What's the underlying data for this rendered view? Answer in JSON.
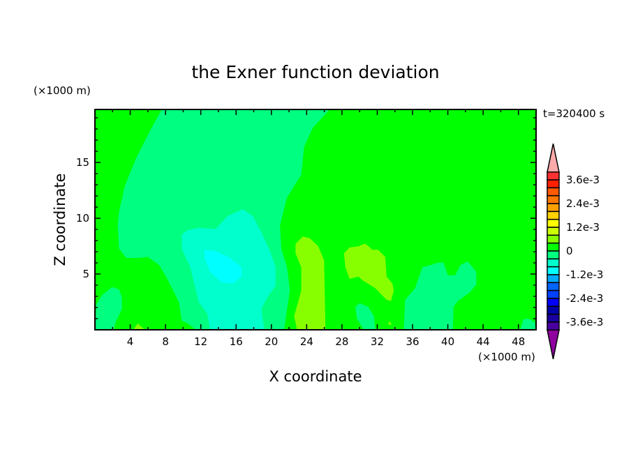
{
  "chart_data": {
    "type": "heatmap",
    "subtype": "filled-contour",
    "title": "the Exner function deviation",
    "xlabel": "X coordinate",
    "ylabel": "Z coordinate",
    "x_unit": "(×1000 m)",
    "y_unit": "(×1000 m)",
    "time_label": "t=320400 s",
    "xlim": [
      0,
      50
    ],
    "ylim": [
      0,
      19.75
    ],
    "x_ticks": [
      4,
      8,
      12,
      16,
      20,
      24,
      28,
      32,
      36,
      40,
      44,
      48
    ],
    "y_ticks": [
      5,
      10,
      15
    ],
    "colorbar": {
      "min": -0.004,
      "max": 0.004,
      "step": 0.0004,
      "tick_labels": [
        "3.6e-3",
        "2.4e-3",
        "1.2e-3",
        "0",
        "-1.2e-3",
        "-2.4e-3",
        "-3.6e-3"
      ],
      "tick_values": [
        0.0036,
        0.0024,
        0.0012,
        0,
        -0.0012,
        -0.0024,
        -0.0036
      ],
      "colors_top_to_bottom": [
        "#ff3030",
        "#ff2000",
        "#ff5a00",
        "#ff7800",
        "#ffa000",
        "#ffd200",
        "#ffff00",
        "#ccff00",
        "#88ff00",
        "#00ff00",
        "#00ff80",
        "#00ffcc",
        "#00ffff",
        "#00aaff",
        "#0064ff",
        "#0040ff",
        "#0000ff",
        "#0000aa",
        "#1a00a0",
        "#4a00a0"
      ],
      "over_color": "#ffaaaa",
      "under_color": "#9000a0"
    },
    "background_level": {
      "range": [
        0,
        0.0004
      ],
      "color": "#00ff00"
    },
    "regions": [
      {
        "range": [
          -0.0004,
          0
        ],
        "color": "#00ff80",
        "polygon": [
          [
            7.58,
            19.75
          ],
          [
            6.29,
            17.9
          ],
          [
            4.68,
            15.4
          ],
          [
            3.39,
            12.9
          ],
          [
            2.74,
            10.6
          ],
          [
            2.58,
            9.36
          ],
          [
            2.74,
            7.27
          ],
          [
            3.55,
            6.44
          ],
          [
            5.0,
            6.44
          ],
          [
            5.97,
            6.54
          ],
          [
            7.26,
            5.81
          ],
          [
            8.06,
            4.77
          ],
          [
            8.87,
            3.52
          ],
          [
            9.52,
            2.48
          ],
          [
            9.84,
            0.81
          ],
          [
            10.48,
            0.6
          ],
          [
            11.45,
            0
          ],
          [
            21.45,
            0
          ],
          [
            21.77,
            1.86
          ],
          [
            22.1,
            3.52
          ],
          [
            21.77,
            5.6
          ],
          [
            21.13,
            7.27
          ],
          [
            20.97,
            9.36
          ],
          [
            21.77,
            11.86
          ],
          [
            23.39,
            13.9
          ],
          [
            23.71,
            16.4
          ],
          [
            24.68,
            18.1
          ],
          [
            26.61,
            19.75
          ]
        ]
      },
      {
        "range": [
          -0.0004,
          0
        ],
        "color": "#00ff80",
        "polygon": [
          [
            0,
            0
          ],
          [
            0.16,
            2.27
          ],
          [
            0.81,
            3.1
          ],
          [
            1.94,
            3.83
          ],
          [
            2.74,
            3.62
          ],
          [
            3.06,
            2.9
          ],
          [
            3.06,
            1.86
          ],
          [
            2.42,
            0.81
          ],
          [
            2.1,
            0
          ]
        ]
      },
      {
        "range": [
          -0.0008,
          -0.0004
        ],
        "color": "#00ffcc",
        "polygon": [
          [
            9.84,
            8.52
          ],
          [
            10.48,
            8.94
          ],
          [
            11.77,
            9.14
          ],
          [
            13.71,
            9.04
          ],
          [
            15.0,
            10.19
          ],
          [
            16.77,
            10.81
          ],
          [
            17.9,
            10.19
          ],
          [
            18.87,
            8.73
          ],
          [
            19.84,
            7.06
          ],
          [
            20.48,
            5.6
          ],
          [
            20.48,
            3.94
          ],
          [
            19.52,
            2.9
          ],
          [
            18.87,
            1.86
          ],
          [
            19.19,
            0
          ],
          [
            13.06,
            0
          ],
          [
            12.74,
            1.44
          ],
          [
            11.77,
            2.48
          ],
          [
            10.81,
            5.6
          ],
          [
            9.84,
            7.27
          ]
        ]
      },
      {
        "range": [
          -0.0012,
          -0.0008
        ],
        "color": "#00ffff",
        "polygon": [
          [
            12.42,
            7.17
          ],
          [
            13.71,
            7.06
          ],
          [
            15.32,
            6.44
          ],
          [
            16.61,
            5.6
          ],
          [
            16.61,
            4.77
          ],
          [
            15.65,
            4.15
          ],
          [
            14.35,
            4.25
          ],
          [
            13.06,
            5.19
          ],
          [
            12.42,
            6.44
          ]
        ]
      },
      {
        "range": [
          0.0004,
          0.0008
        ],
        "color": "#88ff00",
        "polygon": [
          [
            22.74,
            7.69
          ],
          [
            23.55,
            8.36
          ],
          [
            24.35,
            8.21
          ],
          [
            25.32,
            7.48
          ],
          [
            25.97,
            6.23
          ],
          [
            26.13,
            0
          ],
          [
            22.9,
            0
          ],
          [
            22.58,
            1.23
          ],
          [
            23.39,
            3.52
          ],
          [
            23.39,
            5.6
          ],
          [
            22.74,
            6.86
          ]
        ]
      },
      {
        "range": [
          0.0004,
          0.0008
        ],
        "color": "#88ff00",
        "polygon": [
          [
            28.23,
            6.86
          ],
          [
            28.87,
            7.38
          ],
          [
            29.84,
            7.48
          ],
          [
            30.65,
            7.73
          ],
          [
            31.45,
            7.17
          ],
          [
            32.1,
            7.17
          ],
          [
            32.9,
            6.54
          ],
          [
            33.06,
            4.77
          ],
          [
            33.71,
            4.15
          ],
          [
            33.87,
            3.52
          ],
          [
            33.55,
            2.58
          ],
          [
            33.06,
            2.69
          ],
          [
            31.77,
            3.73
          ],
          [
            30.48,
            4.36
          ],
          [
            29.84,
            4.77
          ],
          [
            28.87,
            4.56
          ],
          [
            28.39,
            5.6
          ]
        ]
      },
      {
        "range": [
          0.0004,
          0.0008
        ],
        "color": "#88ff00",
        "polygon": [
          [
            4.35,
            0
          ],
          [
            4.84,
            0.56
          ],
          [
            5.65,
            0
          ]
        ]
      },
      {
        "range": [
          0.0004,
          0.0008
        ],
        "color": "#88ff00",
        "polygon": [
          [
            33.2,
            0.5
          ],
          [
            33.4,
            0.77
          ],
          [
            33.65,
            0.44
          ]
        ]
      },
      {
        "range": [
          -0.0004,
          0
        ],
        "color": "#00ff80",
        "polygon": [
          [
            35.0,
            0
          ],
          [
            35.16,
            2.69
          ],
          [
            36.29,
            3.73
          ],
          [
            36.94,
            5.19
          ],
          [
            37.1,
            5.6
          ],
          [
            38.06,
            5.81
          ],
          [
            38.87,
            6.02
          ],
          [
            39.52,
            6.02
          ],
          [
            40.0,
            4.88
          ],
          [
            40.81,
            4.88
          ],
          [
            41.45,
            5.81
          ],
          [
            42.26,
            6.13
          ],
          [
            43.23,
            5.19
          ],
          [
            43.23,
            4.04
          ],
          [
            42.42,
            3.31
          ],
          [
            41.13,
            2.58
          ],
          [
            40.65,
            2.06
          ],
          [
            40.55,
            0
          ]
        ]
      },
      {
        "range": [
          -0.0004,
          0
        ],
        "color": "#00ff80",
        "polygon": [
          [
            29.52,
            2.06
          ],
          [
            30.0,
            2.38
          ],
          [
            30.97,
            2.06
          ],
          [
            31.61,
            1.23
          ],
          [
            31.77,
            0
          ],
          [
            30.48,
            0
          ],
          [
            29.68,
            1.02
          ]
        ]
      },
      {
        "range": [
          -0.0004,
          0
        ],
        "color": "#00ff80",
        "polygon": [
          [
            48.2,
            0
          ],
          [
            48.55,
            0.92
          ],
          [
            49.03,
            1.02
          ],
          [
            49.84,
            0.71
          ],
          [
            50,
            0
          ]
        ]
      }
    ]
  }
}
